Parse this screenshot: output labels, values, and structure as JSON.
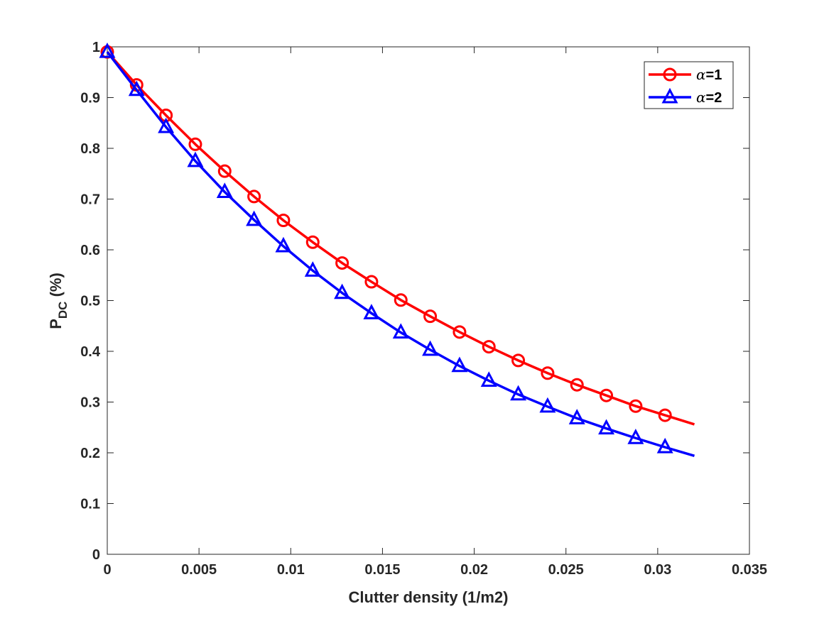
{
  "chart_data": {
    "type": "line",
    "xlabel": "Clutter density (1/m2)",
    "ylabel_main": "P",
    "ylabel_sub": "DC",
    "ylabel_unit": " (%)",
    "xlim": [
      0,
      0.035
    ],
    "ylim": [
      0,
      1
    ],
    "x_ticks": [
      0,
      0.005,
      0.01,
      0.015,
      0.02,
      0.025,
      0.03,
      0.035
    ],
    "x_tick_labels": [
      "0",
      "0.005",
      "0.01",
      "0.015",
      "0.02",
      "0.025",
      "0.03",
      "0.035"
    ],
    "y_ticks": [
      0,
      0.1,
      0.2,
      0.3,
      0.4,
      0.5,
      0.6,
      0.7,
      0.8,
      0.9,
      1
    ],
    "y_tick_labels": [
      "0",
      "0.1",
      "0.2",
      "0.3",
      "0.4",
      "0.5",
      "0.6",
      "0.7",
      "0.8",
      "0.9",
      "1"
    ],
    "grid": false,
    "legend_position": "top-right",
    "line_end_x": 0.032,
    "series": [
      {
        "name": "α=1",
        "legend_symbol": "α",
        "legend_text": "=1",
        "color": "#ff0000",
        "marker": "circle",
        "x": [
          0,
          0.0016,
          0.0032,
          0.0048,
          0.0064,
          0.008,
          0.0096,
          0.0112,
          0.0128,
          0.0144,
          0.016,
          0.0176,
          0.0192,
          0.0208,
          0.0224,
          0.024,
          0.0256,
          0.0272,
          0.0288,
          0.0304
        ],
        "values": [
          0.99,
          0.925,
          0.865,
          0.808,
          0.755,
          0.705,
          0.658,
          0.615,
          0.574,
          0.537,
          0.501,
          0.469,
          0.438,
          0.409,
          0.382,
          0.357,
          0.334,
          0.313,
          0.292,
          0.274
        ],
        "line_end_value": 0.256
      },
      {
        "name": "α=2",
        "legend_symbol": "α",
        "legend_text": "=2",
        "color": "#0000ff",
        "marker": "triangle",
        "x": [
          0,
          0.0016,
          0.0032,
          0.0048,
          0.0064,
          0.008,
          0.0096,
          0.0112,
          0.0128,
          0.0144,
          0.016,
          0.0176,
          0.0192,
          0.0208,
          0.0224,
          0.024,
          0.0256,
          0.0272,
          0.0288,
          0.0304
        ],
        "values": [
          0.99,
          0.915,
          0.842,
          0.775,
          0.714,
          0.659,
          0.607,
          0.559,
          0.515,
          0.475,
          0.437,
          0.403,
          0.371,
          0.342,
          0.315,
          0.291,
          0.268,
          0.248,
          0.229,
          0.211
        ],
        "line_end_value": 0.194
      }
    ]
  }
}
